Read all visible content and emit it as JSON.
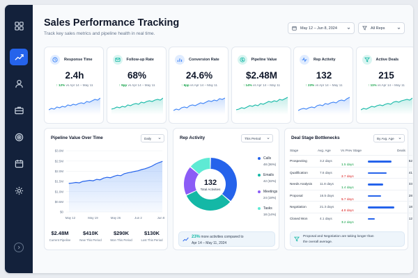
{
  "colors": {
    "sidebar": "#13213b",
    "accent": "#2563eb",
    "up": "#16a34a",
    "down": "#dc2626",
    "teal": "#14b8a6",
    "purple": "#8b5cf6"
  },
  "sidebar": {
    "items": [
      {
        "icon": "grid-icon"
      },
      {
        "icon": "chart-line-icon",
        "active": true
      },
      {
        "icon": "user-icon"
      },
      {
        "icon": "briefcase-icon"
      },
      {
        "icon": "target-icon"
      },
      {
        "icon": "calendar-icon"
      },
      {
        "icon": "gear-icon"
      }
    ],
    "collapse_icon": "chevron-right-icon"
  },
  "header": {
    "title": "Sales Performance Tracking",
    "subtitle": "Track key sales metrics and pipeline health in real time.",
    "date_range": "May 12 – Jun 8, 2024",
    "rep_filter": "All Reps"
  },
  "kpis": [
    {
      "label": "Response Time",
      "value": "2.4h",
      "change": "12%",
      "suffix": "vs Apr 14 – May 11",
      "icon": "clock-icon",
      "color": "#3b82f6",
      "bg": "#e0ecff"
    },
    {
      "label": "Follow-up Rate",
      "value": "68%",
      "change": "9pp",
      "suffix": "vs Apr 14 – May 11",
      "icon": "mail-icon",
      "color": "#14b8a6",
      "bg": "#d9f5f1"
    },
    {
      "label": "Conversion Rate",
      "value": "24.6%",
      "change": "6pp",
      "suffix": "vs Apr 14 – May 11",
      "icon": "bar-chart-icon",
      "color": "#3b82f6",
      "bg": "#e0ecff"
    },
    {
      "label": "Pipeline Value",
      "value": "$2.48M",
      "change": "14%",
      "suffix": "vs Apr 14 – May 11",
      "icon": "dollar-icon",
      "color": "#14b8a6",
      "bg": "#d9f5f1"
    },
    {
      "label": "Rep Activity",
      "value": "132",
      "change": "23%",
      "suffix": "vs Apr 14 – May 11",
      "icon": "pulse-icon",
      "color": "#3b82f6",
      "bg": "#e0ecff"
    },
    {
      "label": "Active Deals",
      "value": "215",
      "change": "11%",
      "suffix": "vs Apr 14 – May 11",
      "icon": "funnel-icon",
      "color": "#14b8a6",
      "bg": "#d9f5f1"
    }
  ],
  "pipeline": {
    "title": "Pipeline Value Over Time",
    "granularity": "Daily",
    "stats": [
      {
        "value": "$2.48M",
        "label": "Current Pipeline"
      },
      {
        "value": "$410K",
        "label": "New This Period"
      },
      {
        "value": "$290K",
        "label": "Won This Period"
      },
      {
        "value": "$130K",
        "label": "Lost This Period"
      }
    ]
  },
  "chart_data": {
    "type": "area",
    "title": "Pipeline Value Over Time",
    "xlabel": "",
    "ylabel": "",
    "x_ticks": [
      "May 12",
      "May 19",
      "May 26",
      "Jun 2",
      "Jun 8"
    ],
    "y_ticks": [
      "$3.0M",
      "$2.5M",
      "$2.0M",
      "$1.5M",
      "$1.0M",
      "$0.5M",
      "$0"
    ],
    "ylim": [
      0,
      3.0
    ],
    "grid": true,
    "series": [
      {
        "values": [
          1.4,
          1.42,
          1.45,
          1.43,
          1.5,
          1.52,
          1.55,
          1.53,
          1.6,
          1.58,
          1.66,
          1.7,
          1.68,
          1.75,
          1.8,
          1.78,
          1.88,
          1.92,
          1.95,
          1.99,
          2.02,
          2.08,
          2.12,
          2.18,
          2.25,
          2.35,
          2.42,
          2.48
        ]
      }
    ]
  },
  "activity": {
    "title": "Rep Activity",
    "period": "This Period",
    "total": "132",
    "total_label": "Total Activities",
    "segments": [
      {
        "name": "Calls",
        "count": "48",
        "pct": "(36%)",
        "value": 48,
        "color": "#2563eb"
      },
      {
        "name": "Emails",
        "count": "42",
        "pct": "(32%)",
        "value": 42,
        "color": "#14b8a6"
      },
      {
        "name": "Meetings",
        "count": "24",
        "pct": "(18%)",
        "value": 24,
        "color": "#8b5cf6"
      },
      {
        "name": "Tasks",
        "count": "18",
        "pct": "(14%)",
        "value": 18,
        "color": "#5eead4"
      }
    ],
    "note_highlight": "23%",
    "note_text": "more activities compared to",
    "note_text2": "Apr 14 – May 11, 2024"
  },
  "bottlenecks": {
    "title": "Deal Stage Bottlenecks",
    "sort": "By Avg. Age",
    "headers": [
      "Stage",
      "Avg. Age",
      "Vs Prev Stage",
      "Deals"
    ],
    "rows": [
      {
        "stage": "Prospecting",
        "age": "3.2 days",
        "delta": "1.5 days",
        "dir": "up",
        "deals": "52",
        "bar": 0.85
      },
      {
        "stage": "Qualification",
        "age": "7.6 days",
        "delta": "2.7 days",
        "dir": "down",
        "deals": "41",
        "bar": 0.68
      },
      {
        "stage": "Needs Analysis",
        "age": "11.8 days",
        "delta": "1.4 days",
        "dir": "up",
        "deals": "33",
        "bar": 0.55
      },
      {
        "stage": "Proposal",
        "age": "16.5 days",
        "delta": "5.7 days",
        "dir": "down",
        "deals": "28",
        "bar": 0.48
      },
      {
        "stage": "Negotiation",
        "age": "21.3 days",
        "delta": "4.8 days",
        "dir": "down",
        "deals": "18",
        "bar": 0.95
      },
      {
        "stage": "Closed Won",
        "age": "4.1 days",
        "delta": "3.2 days",
        "dir": "up",
        "deals": "12",
        "bar": 0.25
      }
    ],
    "note": "Proposal and Negotiation are taking longer than",
    "note2": "the overall average."
  }
}
